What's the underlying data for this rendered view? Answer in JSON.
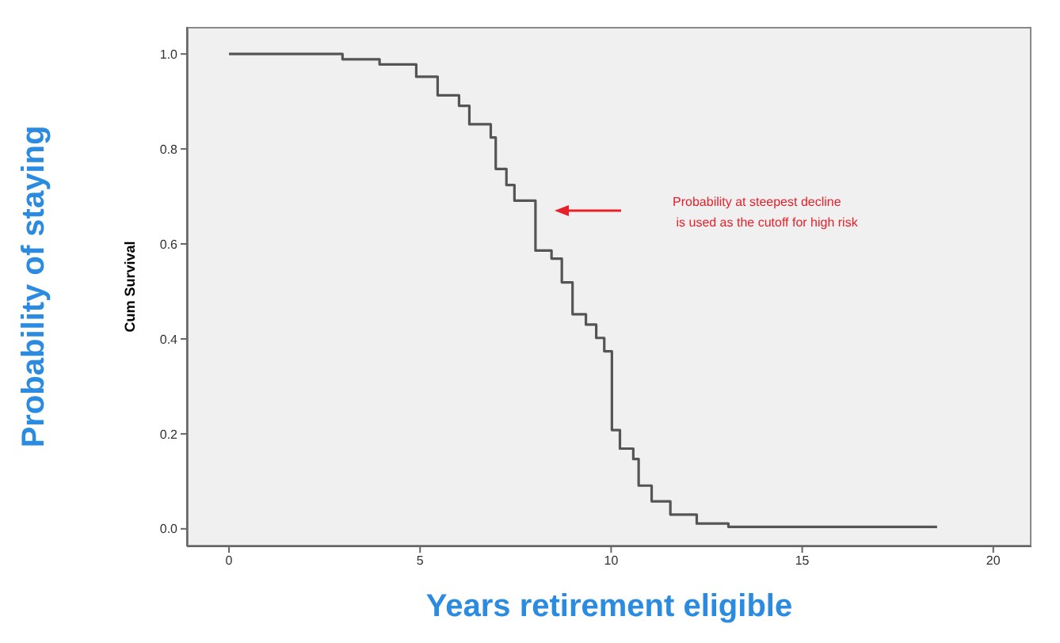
{
  "chart_data": {
    "type": "step",
    "xlabel": "Years retirement eligible",
    "ylabel": "Cum Survival",
    "annotations": [
      "Probability of staying",
      "Probability at steepest decline\n is used as the cutoff for high risk"
    ],
    "x": [
      0,
      2.97,
      3.94,
      4.9,
      5.46,
      6.02,
      6.29,
      6.85,
      6.98,
      7.26,
      7.47,
      8.02,
      8.44,
      8.71,
      8.99,
      9.34,
      9.61,
      9.82,
      10.02,
      10.23,
      10.58,
      10.72,
      11.06,
      11.55,
      12.24,
      13.07,
      18.53
    ],
    "series": [
      {
        "color": "#555555",
        "values": [
          1.0,
          0.989,
          0.978,
          0.952,
          0.913,
          0.891,
          0.852,
          0.824,
          0.758,
          0.724,
          0.691,
          0.586,
          0.569,
          0.519,
          0.452,
          0.43,
          0.402,
          0.374,
          0.208,
          0.169,
          0.147,
          0.091,
          0.058,
          0.03,
          0.011,
          0.004,
          0.004
        ]
      }
    ],
    "xlim": [
      -1.1,
      21
    ],
    "xticks": [
      0,
      5,
      10,
      15,
      20
    ],
    "ylim": [
      -0.037,
      1.057
    ],
    "yticks": [
      {
        "value": 0,
        "label": "0.0"
      },
      {
        "value": 0.2,
        "label": "0.2"
      },
      {
        "value": 0.4,
        "label": "0.4"
      },
      {
        "value": 0.6,
        "label": "0.6"
      },
      {
        "value": 0.8,
        "label": "0.8"
      },
      {
        "value": 1,
        "label": "1.0"
      }
    ],
    "marker": "none",
    "line_style": "solid",
    "legend": false,
    "grid": false
  }
}
